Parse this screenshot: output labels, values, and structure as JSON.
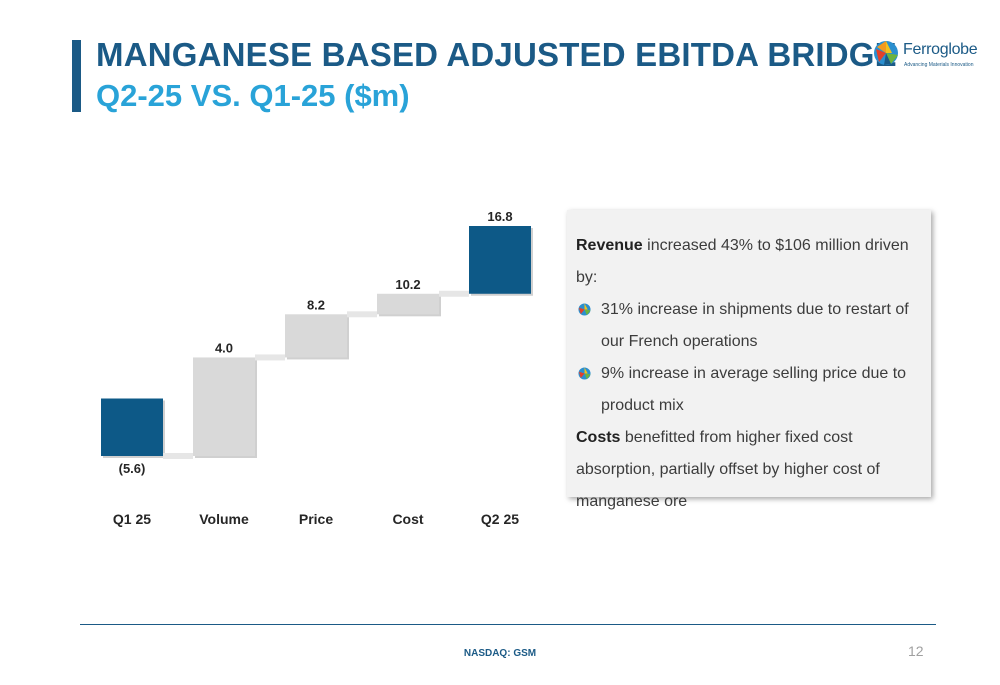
{
  "header": {
    "title": "MANGANESE BASED ADJUSTED EBITDA BRIDGE",
    "subtitle": "Q2-25 VS. Q1-25 ($m)"
  },
  "logo": {
    "name": "Ferroglobe",
    "tagline": "Advancing Materials Innovation"
  },
  "chart_data": {
    "type": "bar",
    "subtype": "waterfall",
    "categories": [
      "Q1 25",
      "Volume",
      "Price",
      "Cost",
      "Q2 25"
    ],
    "values": [
      -5.6,
      4.0,
      8.2,
      10.2,
      16.8
    ],
    "labels": [
      "(5.6)",
      "4.0",
      "8.2",
      "10.2",
      "16.8"
    ],
    "kinds": [
      "total",
      "delta",
      "delta",
      "delta",
      "total"
    ],
    "colors": {
      "total": "#0d5987",
      "delta": "#d9d9d9",
      "connector": "#e6e6e6"
    },
    "title": "",
    "xlabel": "",
    "ylabel": "",
    "ylim": [
      -5.6,
      16.8
    ],
    "grid": false
  },
  "notes": {
    "p1_bold": "Revenue",
    "p1_rest": " increased 43% to $106 million driven by:",
    "bullets": [
      "31% increase in shipments due to restart of our French operations",
      "9% increase in average selling price due to product mix"
    ],
    "p2_bold": "Costs",
    "p2_rest": " benefitted from higher fixed cost absorption, partially offset by higher cost of manganese ore"
  },
  "footer": {
    "text": "NASDAQ: GSM",
    "page": "12"
  }
}
